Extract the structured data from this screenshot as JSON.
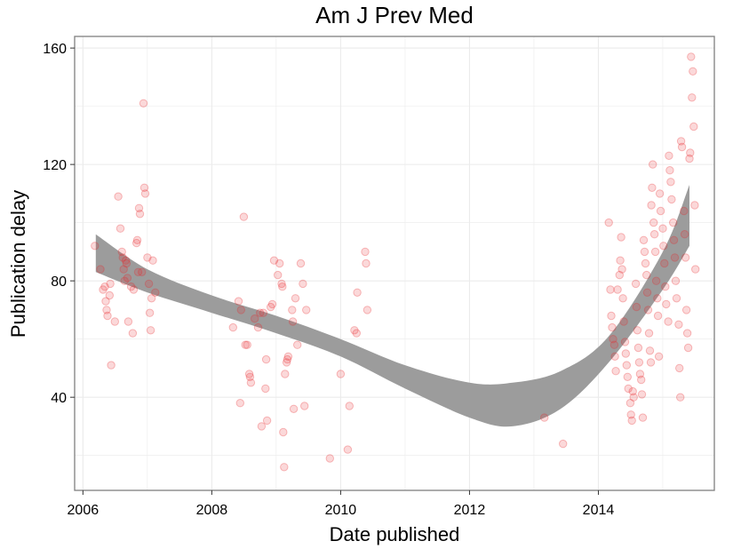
{
  "chart_data": {
    "type": "scatter",
    "title": "Am J Prev Med",
    "xlabel": "Date published",
    "ylabel": "Publication delay",
    "x_ticks": [
      "2006",
      "2008",
      "2010",
      "2012",
      "2014"
    ],
    "y_ticks": [
      "40",
      "80",
      "120",
      "160"
    ],
    "xlim": [
      "2005-11-15",
      "2015-10-20"
    ],
    "ylim": [
      8,
      164
    ],
    "grid": true,
    "legend": "none",
    "colors": {
      "points": "#e8282b",
      "band": "#999999",
      "panel_border": "#7f7f7f",
      "grid": "#ebebeb"
    },
    "smooth_band": {
      "upper": [
        [
          "2006-03-15",
          96
        ],
        [
          "2007-01-01",
          84
        ],
        [
          "2008-01-01",
          75
        ],
        [
          "2009-01-01",
          68
        ],
        [
          "2010-01-01",
          60
        ],
        [
          "2011-01-01",
          51
        ],
        [
          "2012-01-01",
          45
        ],
        [
          "2012-09-01",
          45
        ],
        [
          "2013-06-01",
          49
        ],
        [
          "2014-03-01",
          61
        ],
        [
          "2015-01-01",
          90
        ],
        [
          "2015-06-01",
          113
        ]
      ],
      "lower": [
        [
          "2006-03-15",
          83
        ],
        [
          "2007-01-01",
          76
        ],
        [
          "2008-01-01",
          69
        ],
        [
          "2009-01-01",
          62
        ],
        [
          "2010-01-01",
          54
        ],
        [
          "2011-01-01",
          43
        ],
        [
          "2012-01-01",
          33
        ],
        [
          "2012-09-01",
          30
        ],
        [
          "2013-06-01",
          36
        ],
        [
          "2014-03-01",
          52
        ],
        [
          "2015-01-01",
          77
        ],
        [
          "2015-06-01",
          92
        ]
      ]
    },
    "points": [
      [
        "2006-03-10",
        92
      ],
      [
        "2006-04-10",
        84
      ],
      [
        "2006-04-25",
        77
      ],
      [
        "2006-05-05",
        78
      ],
      [
        "2006-05-10",
        73
      ],
      [
        "2006-05-15",
        70
      ],
      [
        "2006-05-20",
        68
      ],
      [
        "2006-06-01",
        75
      ],
      [
        "2006-06-05",
        79
      ],
      [
        "2006-06-10",
        51
      ],
      [
        "2006-07-01",
        66
      ],
      [
        "2006-07-20",
        109
      ],
      [
        "2006-08-01",
        98
      ],
      [
        "2006-08-10",
        90
      ],
      [
        "2006-08-15",
        88
      ],
      [
        "2006-08-20",
        84
      ],
      [
        "2006-08-25",
        80
      ],
      [
        "2006-09-01",
        87
      ],
      [
        "2006-09-05",
        86
      ],
      [
        "2006-09-10",
        81
      ],
      [
        "2006-09-15",
        66
      ],
      [
        "2006-10-01",
        78
      ],
      [
        "2006-10-10",
        62
      ],
      [
        "2006-10-15",
        77
      ],
      [
        "2006-11-01",
        93
      ],
      [
        "2006-11-05",
        94
      ],
      [
        "2006-11-10",
        83
      ],
      [
        "2006-11-15",
        105
      ],
      [
        "2006-11-20",
        103
      ],
      [
        "2006-12-01",
        83
      ],
      [
        "2006-12-10",
        141
      ],
      [
        "2006-12-15",
        112
      ],
      [
        "2006-12-20",
        110
      ],
      [
        "2007-01-01",
        88
      ],
      [
        "2007-01-10",
        79
      ],
      [
        "2007-01-15",
        69
      ],
      [
        "2007-01-20",
        63
      ],
      [
        "2007-01-25",
        74
      ],
      [
        "2007-02-01",
        87
      ],
      [
        "2007-02-15",
        76
      ],
      [
        "2008-05-01",
        64
      ],
      [
        "2008-06-01",
        73
      ],
      [
        "2008-06-10",
        38
      ],
      [
        "2008-06-15",
        70
      ],
      [
        "2008-07-01",
        102
      ],
      [
        "2008-07-10",
        58
      ],
      [
        "2008-07-20",
        58
      ],
      [
        "2008-08-01",
        48
      ],
      [
        "2008-08-05",
        47
      ],
      [
        "2008-08-10",
        45
      ],
      [
        "2008-09-01",
        67
      ],
      [
        "2008-09-20",
        64
      ],
      [
        "2008-10-01",
        69
      ],
      [
        "2008-10-10",
        30
      ],
      [
        "2008-10-20",
        69
      ],
      [
        "2008-11-01",
        43
      ],
      [
        "2008-11-05",
        53
      ],
      [
        "2008-11-10",
        32
      ],
      [
        "2008-12-01",
        71
      ],
      [
        "2008-12-10",
        72
      ],
      [
        "2008-12-20",
        87
      ],
      [
        "2009-01-10",
        82
      ],
      [
        "2009-01-20",
        86
      ],
      [
        "2009-02-01",
        79
      ],
      [
        "2009-02-05",
        78
      ],
      [
        "2009-02-10",
        28
      ],
      [
        "2009-02-15",
        16
      ],
      [
        "2009-02-20",
        48
      ],
      [
        "2009-03-01",
        52
      ],
      [
        "2009-03-05",
        53
      ],
      [
        "2009-03-10",
        54
      ],
      [
        "2009-04-01",
        70
      ],
      [
        "2009-04-05",
        66
      ],
      [
        "2009-04-10",
        36
      ],
      [
        "2009-04-20",
        74
      ],
      [
        "2009-05-01",
        58
      ],
      [
        "2009-05-20",
        86
      ],
      [
        "2009-06-01",
        79
      ],
      [
        "2009-06-10",
        37
      ],
      [
        "2009-06-20",
        70
      ],
      [
        "2009-11-01",
        19
      ],
      [
        "2010-01-01",
        48
      ],
      [
        "2010-02-10",
        22
      ],
      [
        "2010-02-20",
        37
      ],
      [
        "2010-03-20",
        63
      ],
      [
        "2010-04-01",
        62
      ],
      [
        "2010-04-05",
        76
      ],
      [
        "2010-05-20",
        90
      ],
      [
        "2010-05-25",
        86
      ],
      [
        "2010-06-01",
        70
      ],
      [
        "2013-03-01",
        33
      ],
      [
        "2013-06-15",
        24
      ],
      [
        "2014-03-01",
        100
      ],
      [
        "2014-03-10",
        77
      ],
      [
        "2014-03-15",
        68
      ],
      [
        "2014-03-20",
        64
      ],
      [
        "2014-03-25",
        60
      ],
      [
        "2014-04-01",
        58
      ],
      [
        "2014-04-05",
        54
      ],
      [
        "2014-04-10",
        49
      ],
      [
        "2014-04-20",
        77
      ],
      [
        "2014-05-01",
        82
      ],
      [
        "2014-05-05",
        87
      ],
      [
        "2014-05-10",
        95
      ],
      [
        "2014-05-15",
        84
      ],
      [
        "2014-05-20",
        74
      ],
      [
        "2014-05-25",
        66
      ],
      [
        "2014-06-01",
        59
      ],
      [
        "2014-06-05",
        55
      ],
      [
        "2014-06-10",
        51
      ],
      [
        "2014-06-15",
        47
      ],
      [
        "2014-06-20",
        43
      ],
      [
        "2014-07-01",
        38
      ],
      [
        "2014-07-05",
        34
      ],
      [
        "2014-07-10",
        32
      ],
      [
        "2014-07-15",
        42
      ],
      [
        "2014-07-20",
        40
      ],
      [
        "2014-08-01",
        79
      ],
      [
        "2014-08-05",
        71
      ],
      [
        "2014-08-10",
        63
      ],
      [
        "2014-08-15",
        57
      ],
      [
        "2014-08-20",
        52
      ],
      [
        "2014-08-25",
        48
      ],
      [
        "2014-09-01",
        46
      ],
      [
        "2014-09-05",
        41
      ],
      [
        "2014-09-10",
        33
      ],
      [
        "2014-09-15",
        94
      ],
      [
        "2014-09-20",
        90
      ],
      [
        "2014-09-25",
        86
      ],
      [
        "2014-10-01",
        82
      ],
      [
        "2014-10-05",
        76
      ],
      [
        "2014-10-10",
        70
      ],
      [
        "2014-10-15",
        62
      ],
      [
        "2014-10-20",
        56
      ],
      [
        "2014-10-25",
        52
      ],
      [
        "2014-10-28",
        106
      ],
      [
        "2014-11-01",
        112
      ],
      [
        "2014-11-05",
        120
      ],
      [
        "2014-11-10",
        100
      ],
      [
        "2014-11-15",
        96
      ],
      [
        "2014-11-20",
        90
      ],
      [
        "2014-11-25",
        80
      ],
      [
        "2014-12-01",
        74
      ],
      [
        "2014-12-05",
        68
      ],
      [
        "2014-12-10",
        54
      ],
      [
        "2014-12-15",
        110
      ],
      [
        "2014-12-20",
        104
      ],
      [
        "2015-01-01",
        98
      ],
      [
        "2015-01-05",
        92
      ],
      [
        "2015-01-10",
        86
      ],
      [
        "2015-01-15",
        78
      ],
      [
        "2015-01-20",
        72
      ],
      [
        "2015-02-01",
        66
      ],
      [
        "2015-02-05",
        123
      ],
      [
        "2015-02-10",
        118
      ],
      [
        "2015-02-15",
        114
      ],
      [
        "2015-02-20",
        108
      ],
      [
        "2015-03-01",
        100
      ],
      [
        "2015-03-05",
        94
      ],
      [
        "2015-03-10",
        88
      ],
      [
        "2015-03-15",
        80
      ],
      [
        "2015-03-20",
        74
      ],
      [
        "2015-04-01",
        65
      ],
      [
        "2015-04-05",
        50
      ],
      [
        "2015-04-10",
        40
      ],
      [
        "2015-04-15",
        128
      ],
      [
        "2015-04-20",
        126
      ],
      [
        "2015-05-01",
        104
      ],
      [
        "2015-05-05",
        96
      ],
      [
        "2015-05-10",
        88
      ],
      [
        "2015-05-15",
        70
      ],
      [
        "2015-05-20",
        62
      ],
      [
        "2015-05-25",
        57
      ],
      [
        "2015-06-01",
        122
      ],
      [
        "2015-06-05",
        124
      ],
      [
        "2015-06-10",
        157
      ],
      [
        "2015-06-15",
        143
      ],
      [
        "2015-06-20",
        152
      ],
      [
        "2015-06-25",
        133
      ],
      [
        "2015-07-01",
        106
      ],
      [
        "2015-07-05",
        84
      ]
    ]
  }
}
